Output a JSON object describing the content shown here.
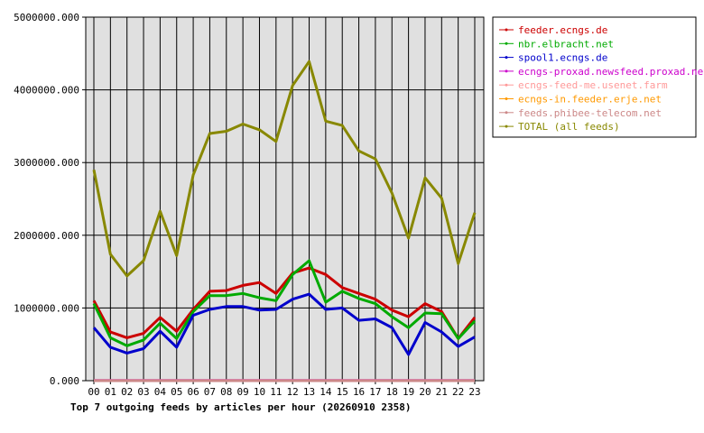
{
  "chart_data": {
    "type": "line",
    "title": "Top 7 outgoing feeds by articles per hour (20260910 2358)",
    "xlabel": "",
    "ylabel": "",
    "ylim": [
      0,
      5000000
    ],
    "yticks": [
      "0.000",
      "1000000.000",
      "2000000.000",
      "3000000.000",
      "4000000.000",
      "5000000.000"
    ],
    "yticks_values": [
      0,
      1000000,
      2000000,
      3000000,
      4000000,
      5000000
    ],
    "categories": [
      "00",
      "01",
      "02",
      "03",
      "04",
      "05",
      "06",
      "07",
      "08",
      "09",
      "10",
      "11",
      "12",
      "13",
      "14",
      "15",
      "16",
      "17",
      "18",
      "19",
      "20",
      "21",
      "22",
      "23"
    ],
    "grid": true,
    "legend_position": "right",
    "plot_background": "#e0e0e0",
    "series": [
      {
        "name": "feeder.ecngs.de",
        "color": "#cc0000",
        "values": [
          1100000,
          670000,
          590000,
          650000,
          870000,
          680000,
          980000,
          1230000,
          1240000,
          1310000,
          1350000,
          1200000,
          1480000,
          1550000,
          1460000,
          1280000,
          1200000,
          1120000,
          970000,
          880000,
          1060000,
          950000,
          580000,
          870000
        ]
      },
      {
        "name": "nbr.elbracht.net",
        "color": "#00aa00",
        "values": [
          1060000,
          590000,
          480000,
          560000,
          790000,
          580000,
          950000,
          1170000,
          1170000,
          1200000,
          1140000,
          1100000,
          1460000,
          1650000,
          1080000,
          1230000,
          1130000,
          1060000,
          880000,
          730000,
          930000,
          920000,
          580000,
          820000
        ]
      },
      {
        "name": "spool1.ecngs.de",
        "color": "#0000cc",
        "values": [
          730000,
          460000,
          380000,
          440000,
          680000,
          460000,
          900000,
          980000,
          1020000,
          1020000,
          970000,
          980000,
          1120000,
          1190000,
          980000,
          1000000,
          830000,
          850000,
          730000,
          360000,
          800000,
          670000,
          470000,
          600000
        ]
      },
      {
        "name": "ecngs-proxad.newsfeed.proxad.net",
        "color": "#cc00cc",
        "values": [
          2000,
          2000,
          2000,
          2000,
          2000,
          2000,
          2000,
          2000,
          2000,
          2000,
          2000,
          2000,
          2000,
          2000,
          2000,
          2000,
          2000,
          2000,
          2000,
          2000,
          2000,
          2000,
          2000,
          2000
        ]
      },
      {
        "name": "ecngs-feed-me.usenet.farm",
        "color": "#ff9999",
        "values": [
          1000,
          1000,
          1000,
          1000,
          1000,
          1000,
          1000,
          1000,
          1000,
          1000,
          1000,
          1000,
          1000,
          1000,
          1000,
          1000,
          1000,
          1000,
          1000,
          1000,
          1000,
          1000,
          1000,
          1000
        ]
      },
      {
        "name": "ecngs-in.feeder.erje.net",
        "color": "#ff9900",
        "values": [
          500,
          500,
          500,
          500,
          500,
          500,
          500,
          500,
          500,
          500,
          500,
          500,
          500,
          500,
          500,
          500,
          500,
          500,
          500,
          500,
          500,
          500,
          500,
          500
        ]
      },
      {
        "name": "feeds.phibee-telecom.net",
        "color": "#cc8888",
        "values": [
          300,
          300,
          300,
          300,
          300,
          300,
          300,
          300,
          300,
          300,
          300,
          300,
          300,
          300,
          300,
          300,
          300,
          300,
          300,
          300,
          300,
          300,
          300,
          300
        ]
      },
      {
        "name": "TOTAL (all feeds)",
        "color": "#888800",
        "values": [
          2900000,
          1740000,
          1440000,
          1650000,
          2330000,
          1720000,
          2830000,
          3400000,
          3430000,
          3530000,
          3450000,
          3290000,
          4060000,
          4390000,
          3570000,
          3510000,
          3160000,
          3050000,
          2580000,
          1960000,
          2790000,
          2510000,
          1610000,
          2310000
        ]
      }
    ]
  }
}
